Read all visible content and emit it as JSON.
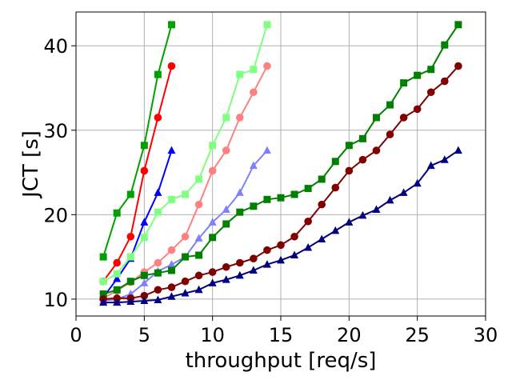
{
  "chart_data": {
    "type": "line",
    "title": "",
    "xlabel": "throughput [req/s]",
    "ylabel": "JCT [s]",
    "xlim": [
      0,
      30
    ],
    "ylim": [
      8,
      44
    ],
    "xticks": [
      0,
      5,
      10,
      15,
      20,
      25,
      30
    ],
    "yticks": [
      10,
      20,
      30,
      40
    ],
    "grid": true,
    "legend": "none",
    "series": [
      {
        "color": "#00a000",
        "marker": "square",
        "points": [
          [
            2,
            15.0
          ],
          [
            3,
            20.2
          ],
          [
            4,
            22.4
          ],
          [
            5,
            28.2
          ],
          [
            6,
            36.6
          ],
          [
            7,
            42.5
          ]
        ]
      },
      {
        "color": "#ff0000",
        "marker": "circle",
        "points": [
          [
            2,
            12.1
          ],
          [
            3,
            14.3
          ],
          [
            4,
            17.4
          ],
          [
            5,
            25.2
          ],
          [
            6,
            31.5
          ],
          [
            7,
            37.6
          ]
        ]
      },
      {
        "color": "#0000ff",
        "marker": "triangle",
        "points": [
          [
            2,
            10.2
          ],
          [
            3,
            12.4
          ],
          [
            4,
            14.8
          ],
          [
            5,
            19.1
          ],
          [
            6,
            22.6
          ],
          [
            7,
            27.6
          ]
        ]
      },
      {
        "color": "#80ff80",
        "marker": "square",
        "points": [
          [
            2,
            12.1
          ],
          [
            3,
            13.0
          ],
          [
            4,
            15.0
          ],
          [
            5,
            17.3
          ],
          [
            6,
            20.3
          ],
          [
            7,
            21.8
          ],
          [
            8,
            22.4
          ],
          [
            9,
            24.2
          ],
          [
            10,
            28.2
          ],
          [
            11,
            31.5
          ],
          [
            12,
            36.6
          ],
          [
            13,
            37.2
          ],
          [
            14,
            42.5
          ]
        ]
      },
      {
        "color": "#ff8080",
        "marker": "circle",
        "points": [
          [
            2,
            10.1
          ],
          [
            3,
            11.0
          ],
          [
            4,
            12.0
          ],
          [
            5,
            13.2
          ],
          [
            6,
            14.3
          ],
          [
            7,
            15.8
          ],
          [
            8,
            17.4
          ],
          [
            9,
            21.2
          ],
          [
            10,
            25.2
          ],
          [
            11,
            27.6
          ],
          [
            12,
            31.5
          ],
          [
            13,
            34.5
          ],
          [
            14,
            37.6
          ]
        ]
      },
      {
        "color": "#8080ff",
        "marker": "triangle",
        "points": [
          [
            2,
            9.8
          ],
          [
            3,
            10.0
          ],
          [
            4,
            10.6
          ],
          [
            5,
            11.9
          ],
          [
            6,
            13.3
          ],
          [
            7,
            14.1
          ],
          [
            8,
            15.0
          ],
          [
            9,
            17.2
          ],
          [
            10,
            19.1
          ],
          [
            11,
            20.6
          ],
          [
            12,
            22.6
          ],
          [
            13,
            25.8
          ],
          [
            14,
            27.6
          ]
        ]
      },
      {
        "color": "#008000",
        "marker": "square",
        "points": [
          [
            2,
            10.6
          ],
          [
            3,
            11.1
          ],
          [
            4,
            12.1
          ],
          [
            5,
            12.8
          ],
          [
            6,
            13.1
          ],
          [
            7,
            13.4
          ],
          [
            8,
            15.0
          ],
          [
            9,
            15.2
          ],
          [
            10,
            17.3
          ],
          [
            11,
            18.9
          ],
          [
            12,
            20.3
          ],
          [
            13,
            21.0
          ],
          [
            14,
            21.8
          ],
          [
            15,
            22.0
          ],
          [
            16,
            22.4
          ],
          [
            17,
            23.1
          ],
          [
            18,
            24.2
          ],
          [
            19,
            26.3
          ],
          [
            20,
            28.2
          ],
          [
            21,
            29.0
          ],
          [
            22,
            31.5
          ],
          [
            23,
            33.0
          ],
          [
            24,
            35.6
          ],
          [
            25,
            36.5
          ],
          [
            26,
            37.2
          ],
          [
            27,
            40.1
          ],
          [
            28,
            42.5
          ]
        ]
      },
      {
        "color": "#800000",
        "marker": "circle",
        "points": [
          [
            2,
            10.0
          ],
          [
            3,
            10.1
          ],
          [
            4,
            10.1
          ],
          [
            5,
            10.4
          ],
          [
            6,
            11.1
          ],
          [
            7,
            11.4
          ],
          [
            8,
            12.1
          ],
          [
            9,
            12.8
          ],
          [
            10,
            13.2
          ],
          [
            11,
            13.8
          ],
          [
            12,
            14.3
          ],
          [
            13,
            14.8
          ],
          [
            14,
            15.8
          ],
          [
            15,
            16.4
          ],
          [
            16,
            17.4
          ],
          [
            17,
            19.2
          ],
          [
            18,
            21.2
          ],
          [
            19,
            23.2
          ],
          [
            20,
            25.2
          ],
          [
            21,
            26.5
          ],
          [
            22,
            27.6
          ],
          [
            23,
            29.5
          ],
          [
            24,
            31.5
          ],
          [
            25,
            32.5
          ],
          [
            26,
            34.5
          ],
          [
            27,
            35.8
          ],
          [
            28,
            37.6
          ]
        ]
      },
      {
        "color": "#000080",
        "marker": "triangle",
        "points": [
          [
            2,
            9.6
          ],
          [
            3,
            9.6
          ],
          [
            4,
            9.7
          ],
          [
            5,
            9.8
          ],
          [
            6,
            9.9
          ],
          [
            7,
            10.3
          ],
          [
            8,
            10.7
          ],
          [
            9,
            11.1
          ],
          [
            10,
            11.9
          ],
          [
            11,
            12.3
          ],
          [
            12,
            12.8
          ],
          [
            13,
            13.4
          ],
          [
            14,
            14.1
          ],
          [
            15,
            14.6
          ],
          [
            16,
            15.2
          ],
          [
            17,
            16.1
          ],
          [
            18,
            17.1
          ],
          [
            19,
            18.1
          ],
          [
            20,
            19.1
          ],
          [
            21,
            19.9
          ],
          [
            22,
            20.6
          ],
          [
            23,
            21.7
          ],
          [
            24,
            22.6
          ],
          [
            25,
            23.7
          ],
          [
            26,
            25.8
          ],
          [
            27,
            26.5
          ],
          [
            28,
            27.6
          ]
        ]
      }
    ]
  }
}
